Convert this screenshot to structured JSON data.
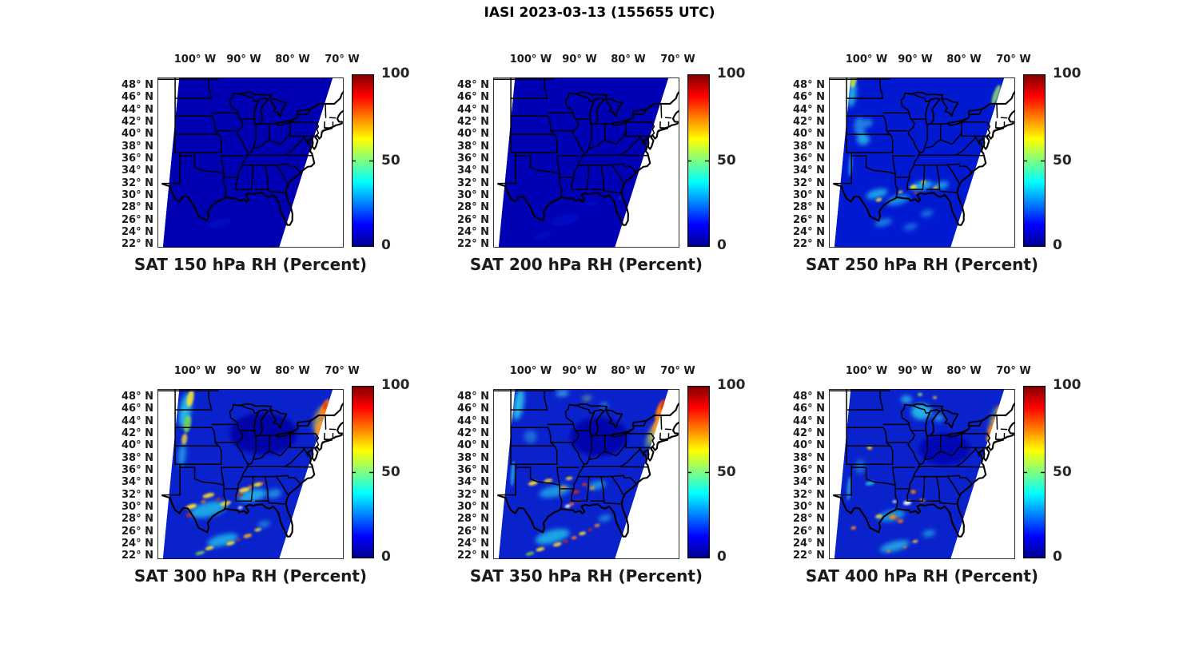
{
  "figure_title": "IASI 2023-03-13 (155655 UTC)",
  "axes": {
    "lon_tick_labels": [
      "100° W",
      "90° W",
      "80° W",
      "70° W"
    ],
    "lat_tick_labels": [
      "48° N",
      "46° N",
      "44° N",
      "42° N",
      "40° N",
      "38° N",
      "36° N",
      "34° N",
      "32° N",
      "30° N",
      "28° N",
      "26° N",
      "24° N",
      "22° N"
    ]
  },
  "colorbar": {
    "tick_labels": [
      "100",
      "50",
      "0"
    ],
    "min": 0,
    "mid": 50,
    "max": 100,
    "colormap": "jet",
    "color_low": "#00008F",
    "color_mid": "#80FF80",
    "color_high": "#800000"
  },
  "panels": [
    {
      "title": "SAT 150 hPa RH (Percent)",
      "pressure_hpa": 150
    },
    {
      "title": "SAT 200 hPa RH (Percent)",
      "pressure_hpa": 200
    },
    {
      "title": "SAT 250 hPa RH (Percent)",
      "pressure_hpa": 250
    },
    {
      "title": "SAT 300 hPa RH (Percent)",
      "pressure_hpa": 300
    },
    {
      "title": "SAT 350 hPa RH (Percent)",
      "pressure_hpa": 350
    },
    {
      "title": "SAT 400 hPa RH (Percent)",
      "pressure_hpa": 400
    }
  ],
  "chart_data": [
    {
      "type": "heatmap",
      "title": "SAT 150 hPa RH (Percent)",
      "satellite": "IASI",
      "datetime_utc": "2023-03-13 155655 UTC",
      "variable": "relative humidity",
      "units": "percent",
      "pressure_hpa": 150,
      "lon_ticks_deg_w": [
        100,
        90,
        80,
        70
      ],
      "lat_ticks_deg_n": [
        48,
        46,
        44,
        42,
        40,
        38,
        36,
        34,
        32,
        30,
        28,
        26,
        24,
        22
      ],
      "colorbar_range": [
        0,
        100
      ],
      "colorbar_ticks": [
        0,
        50,
        100
      ],
      "colormap": "jet",
      "field_summary": "Entire satellite swath is nearly uniform dark blue, RH ~0-10% everywhere; driest level shown.",
      "notable_features": [
        {
          "lon": -95,
          "lat": 35,
          "rh_percent": 5
        },
        {
          "lon": -85,
          "lat": 30,
          "rh_percent": 8
        }
      ]
    },
    {
      "type": "heatmap",
      "title": "SAT 200 hPa RH (Percent)",
      "satellite": "IASI",
      "datetime_utc": "2023-03-13 155655 UTC",
      "variable": "relative humidity",
      "units": "percent",
      "pressure_hpa": 200,
      "lon_ticks_deg_w": [
        100,
        90,
        80,
        70
      ],
      "lat_ticks_deg_n": [
        48,
        46,
        44,
        42,
        40,
        38,
        36,
        34,
        32,
        30,
        28,
        26,
        24,
        22
      ],
      "colorbar_range": [
        0,
        100
      ],
      "colorbar_ticks": [
        0,
        50,
        100
      ],
      "colormap": "jet",
      "field_summary": "Nearly uniform 0-10% RH; very faint moister streaks (~15%) over the Gulf of Mexico and south Texas.",
      "notable_features": [
        {
          "lon": -93,
          "lat": 26,
          "rh_percent": 15
        },
        {
          "lon": -90,
          "lat": 40,
          "rh_percent": 5
        }
      ]
    },
    {
      "type": "heatmap",
      "title": "SAT 250 hPa RH (Percent)",
      "satellite": "IASI",
      "datetime_utc": "2023-03-13 155655 UTC",
      "variable": "relative humidity",
      "units": "percent",
      "pressure_hpa": 250,
      "lon_ticks_deg_w": [
        100,
        90,
        80,
        70
      ],
      "lat_ticks_deg_n": [
        48,
        46,
        44,
        42,
        40,
        38,
        36,
        34,
        32,
        30,
        28,
        26,
        24,
        22
      ],
      "colorbar_range": [
        0,
        100
      ],
      "colorbar_ticks": [
        0,
        50,
        100
      ],
      "colormap": "jet",
      "field_summary": "Background 5-20%; cyan moist streaks 30-50% over the northern Plains and along the west swath edge; SW-NE band of 30-55% with isolated 60-75% yellow cells near 29-33N from Texas to Georgia; narrow greenish ~50% streak on the NE swath edge.",
      "notable_features": [
        {
          "lon": -90.4,
          "lat": 31.4,
          "rh_percent": 65
        },
        {
          "lon": -97.4,
          "lat": 29.3,
          "rh_percent": 60
        },
        {
          "lon": -102.6,
          "lat": 48.9,
          "rh_percent": 55
        },
        {
          "lon": -100.6,
          "lat": 39.2,
          "rh_percent": 35
        }
      ]
    },
    {
      "type": "heatmap",
      "title": "SAT 300 hPa RH (Percent)",
      "satellite": "IASI",
      "datetime_utc": "2023-03-13 155655 UTC",
      "variable": "relative humidity",
      "units": "percent",
      "pressure_hpa": 300,
      "lon_ticks_deg_w": [
        100,
        90,
        80,
        70
      ],
      "lat_ticks_deg_n": [
        48,
        46,
        44,
        42,
        40,
        38,
        36,
        34,
        32,
        30,
        28,
        26,
        24,
        22
      ],
      "colorbar_range": [
        0,
        100
      ],
      "colorbar_ticks": [
        0,
        50,
        100
      ],
      "colormap": "jet",
      "field_summary": "Dry 5-15% core over the Great Lakes and Ohio Valley; 40-65% yellow-green streaks on the northwest swath edge; 60-80% orange streak with red core along the NE swath edge near New York/New England; moist SW-NE bands 40-70% with embedded 80-95% red cells across Texas, the Gulf Coast states (29-34N) and the Gulf of Mexico (22-27N).",
      "notable_features": [
        {
          "lon": -101.2,
          "lat": 28.7,
          "rh_percent": 90
        },
        {
          "lon": -90.7,
          "lat": 32.0,
          "rh_percent": 92
        },
        {
          "lon": -73.4,
          "lat": 46.0,
          "rh_percent": 78
        },
        {
          "lon": -100.9,
          "lat": 47.8,
          "rh_percent": 60
        },
        {
          "lon": -91.0,
          "lat": 24.7,
          "rh_percent": 88
        }
      ]
    },
    {
      "type": "heatmap",
      "title": "SAT 350 hPa RH (Percent)",
      "satellite": "IASI",
      "datetime_utc": "2023-03-13 155655 UTC",
      "variable": "relative humidity",
      "units": "percent",
      "pressure_hpa": 350,
      "lon_ticks_deg_w": [
        100,
        90,
        80,
        70
      ],
      "lat_ticks_deg_n": [
        48,
        46,
        44,
        42,
        40,
        38,
        36,
        34,
        32,
        30,
        28,
        26,
        24,
        22
      ],
      "colorbar_range": [
        0,
        100
      ],
      "colorbar_ticks": [
        0,
        50,
        100
      ],
      "colormap": "jet",
      "field_summary": "Dry 5-15% core over the mid-Mississippi and Ohio Valleys; cyan 30-45% streaks over the northern Plains and upper Midwest; large 65-90% orange/red feature along the NE swath edge; SW-NE moist bands 40-75% with 85-95% red cells along 30-34N (Louisiana/Mississippi) and across the Gulf of Mexico (22-27N); small no-data gap near coastal Louisiana.",
      "notable_features": [
        {
          "lon": -73.4,
          "lat": 45.7,
          "rh_percent": 85
        },
        {
          "lon": -90.7,
          "lat": 32.5,
          "rh_percent": 92
        },
        {
          "lon": -92.8,
          "lat": 24.4,
          "rh_percent": 90
        },
        {
          "lon": -99.5,
          "lat": 33.9,
          "rh_percent": 62
        },
        {
          "lon": -93.5,
          "lat": 48.6,
          "rh_percent": 38
        }
      ]
    },
    {
      "type": "heatmap",
      "title": "SAT 400 hPa RH (Percent)",
      "satellite": "IASI",
      "datetime_utc": "2023-03-13 155655 UTC",
      "variable": "relative humidity",
      "units": "percent",
      "pressure_hpa": 400,
      "lon_ticks_deg_w": [
        100,
        90,
        80,
        70
      ],
      "lat_ticks_deg_n": [
        48,
        46,
        44,
        42,
        40,
        38,
        36,
        34,
        32,
        30,
        28,
        26,
        24,
        22
      ],
      "colorbar_range": [
        0,
        100
      ],
      "colorbar_ticks": [
        0,
        50,
        100
      ],
      "colormap": "jet",
      "field_summary": "Moist 35-55% cyan region over Wisconsin, Lake Michigan and the upper Midwest; scattered 60-80% orange cells along the NE swath edge; dry 10-20% Ohio Valley core; 60-85% orange cluster near the Texas-Louisiana Gulf coast (27-29N); cyan 30-45% bands with small orange flecks across the Gulf (22-26N); no-data white gap over southern Louisiana.",
      "notable_features": [
        {
          "lon": -88.7,
          "lat": 45.6,
          "rh_percent": 42
        },
        {
          "lon": -94.6,
          "lat": 28.4,
          "rh_percent": 75
        },
        {
          "lon": -74.5,
          "lat": 42.6,
          "rh_percent": 72
        },
        {
          "lon": -99.3,
          "lat": 39.7,
          "rh_percent": 60
        },
        {
          "lon": -90.4,
          "lat": 32.5,
          "rh_percent": 70
        }
      ]
    }
  ]
}
